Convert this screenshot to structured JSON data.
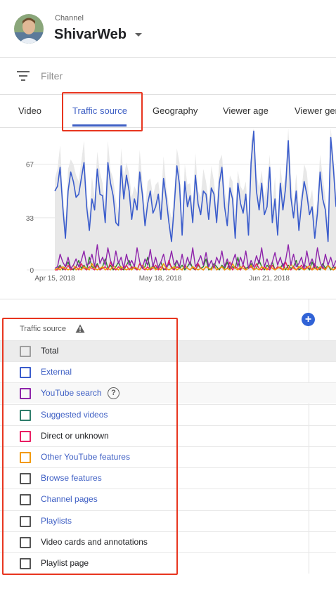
{
  "header": {
    "caption": "Channel",
    "channel_name": "ShivarWeb"
  },
  "filter": {
    "label": "Filter"
  },
  "tabs": [
    {
      "label": "Video",
      "active": false
    },
    {
      "label": "Traffic source",
      "active": true
    },
    {
      "label": "Geography",
      "active": false
    },
    {
      "label": "Viewer age",
      "active": false
    },
    {
      "label": "Viewer ger",
      "active": false
    }
  ],
  "chart_data": {
    "type": "line",
    "x_tick_labels": [
      "Apr 15, 2018",
      "May 18, 2018",
      "Jun 21, 2018"
    ],
    "y_tick_labels": [
      "0",
      "33",
      "67"
    ],
    "ylim": [
      0,
      90
    ],
    "grid": "horizontal",
    "x_days": 107,
    "series": [
      {
        "color": "#3a5ccc",
        "values": [
          50,
          53,
          65,
          40,
          20,
          50,
          62,
          56,
          46,
          48,
          58,
          68,
          40,
          25,
          45,
          38,
          64,
          48,
          47,
          30,
          68,
          55,
          47,
          30,
          28,
          66,
          45,
          60,
          50,
          32,
          45,
          38,
          62,
          48,
          28,
          42,
          50,
          36,
          40,
          48,
          32,
          58,
          45,
          30,
          18,
          40,
          66,
          54,
          22,
          56,
          40,
          47,
          30,
          60,
          42,
          35,
          50,
          48,
          32,
          52,
          48,
          30,
          55,
          65,
          40,
          28,
          52,
          45,
          20,
          55,
          42,
          36,
          48,
          22,
          68,
          88,
          50,
          38,
          55,
          35,
          40,
          65,
          30,
          45,
          22,
          55,
          38,
          52,
          82,
          46,
          33,
          50,
          25,
          42,
          56,
          48,
          35,
          40,
          20,
          36,
          62,
          45,
          38,
          18,
          84,
          65,
          40
        ]
      },
      {
        "color": "#8e24aa",
        "values": [
          1,
          2,
          10,
          5,
          2,
          8,
          1,
          3,
          7,
          2,
          6,
          12,
          3,
          4,
          10,
          2,
          16,
          4,
          8,
          3,
          14,
          6,
          2,
          12,
          4,
          8,
          1,
          10,
          3,
          6,
          2,
          14,
          5,
          1,
          7,
          3,
          13,
          2,
          8,
          1,
          5,
          10,
          2,
          4,
          12,
          3,
          6,
          2,
          10,
          1,
          8,
          3,
          14,
          2,
          5,
          9,
          3,
          11,
          2,
          6,
          1,
          8,
          4,
          12,
          2,
          7,
          1,
          5,
          10,
          2,
          8,
          3,
          12,
          1,
          6,
          2,
          9,
          4,
          14,
          2,
          7,
          1,
          5,
          11,
          3,
          8,
          2,
          6,
          16,
          3,
          10,
          2,
          4,
          8,
          1,
          12,
          3,
          7,
          2,
          14,
          5,
          1,
          10,
          3,
          8,
          2,
          6
        ]
      },
      {
        "color": "#2e7d32",
        "values": [
          0,
          1,
          3,
          0,
          2,
          5,
          1,
          0,
          2,
          6,
          1,
          3,
          0,
          8,
          2,
          1,
          4,
          0,
          2,
          7,
          1,
          3,
          0,
          2,
          5,
          1,
          0,
          3,
          6,
          1,
          2,
          0,
          4,
          1,
          2,
          8,
          0,
          3,
          1,
          2,
          5,
          0,
          1,
          4,
          2,
          0,
          6,
          1,
          3,
          0,
          2,
          5,
          1,
          0,
          3,
          1,
          2,
          7,
          0,
          1,
          4,
          2,
          0,
          3,
          1,
          5,
          0,
          2,
          1,
          8,
          0,
          3,
          1,
          2,
          4,
          0,
          1,
          6,
          2,
          0,
          3,
          1,
          5,
          0,
          2,
          1,
          4,
          0,
          3,
          1,
          2,
          6,
          0,
          1,
          3,
          2,
          0,
          5,
          1,
          2,
          0,
          4,
          1,
          3,
          0,
          2,
          1
        ]
      },
      {
        "color": "#e91e63",
        "values": [
          0,
          0,
          2,
          1,
          0,
          3,
          0,
          1,
          2,
          0,
          4,
          1,
          0,
          2,
          1,
          0,
          3,
          0,
          1,
          2,
          0,
          5,
          1,
          0,
          2,
          0,
          1,
          3,
          0,
          2,
          1,
          0,
          4,
          1,
          0,
          2,
          0,
          1,
          3,
          0,
          2,
          1,
          0,
          6,
          1,
          0,
          2,
          1,
          0,
          3,
          1,
          0,
          2,
          0,
          4,
          1,
          0,
          2,
          1,
          0,
          3,
          0,
          1,
          2,
          0,
          1,
          5,
          0,
          2,
          1,
          0,
          3,
          0,
          1,
          2,
          0,
          4,
          1,
          0,
          2,
          1,
          0,
          3,
          0,
          2,
          1,
          0,
          5,
          1,
          0,
          2,
          0,
          1,
          3,
          0,
          2,
          1,
          0,
          4,
          0,
          1,
          2,
          0,
          3,
          1,
          0,
          2
        ]
      },
      {
        "color": "#f29900",
        "values": [
          0,
          1,
          0,
          2,
          1,
          0,
          1,
          3,
          0,
          1,
          0,
          2,
          1,
          0,
          4,
          1,
          0,
          1,
          2,
          0,
          1,
          0,
          3,
          1,
          0,
          2,
          1,
          0,
          1,
          0,
          2,
          1,
          0,
          3,
          1,
          0,
          1,
          2,
          0,
          1,
          0,
          4,
          1,
          0,
          1,
          2,
          0,
          1,
          0,
          3,
          1,
          0,
          2,
          1,
          0,
          1,
          0,
          2,
          1,
          0,
          3,
          0,
          1,
          2,
          0,
          1,
          0,
          4,
          1,
          0,
          2,
          1,
          0,
          1,
          3,
          0,
          1,
          0,
          2,
          1,
          0,
          3,
          1,
          0,
          1,
          2,
          0,
          1,
          0,
          4,
          1,
          0,
          2,
          1,
          0,
          1,
          3,
          0,
          1,
          0,
          2,
          1,
          0,
          3,
          1,
          0,
          1
        ]
      }
    ],
    "total_band_color": "#e8e8e8"
  },
  "table": {
    "header_label": "Traffic source",
    "rows": [
      {
        "label": "Total",
        "checkbox_color": "#9e9e9e",
        "label_style": "plain",
        "bg": "shaded"
      },
      {
        "label": "External",
        "checkbox_color": "#3a5ccc",
        "label_style": "link",
        "bg": "none"
      },
      {
        "label": "YouTube search",
        "checkbox_color": "#8e24aa",
        "label_style": "link",
        "bg": "alt",
        "help": "?"
      },
      {
        "label": "Suggested videos",
        "checkbox_color": "#2e7d6b",
        "label_style": "link",
        "bg": "none"
      },
      {
        "label": "Direct or unknown",
        "checkbox_color": "#e91e63",
        "label_style": "plain",
        "bg": "none"
      },
      {
        "label": "Other YouTube features",
        "checkbox_color": "#f29900",
        "label_style": "link",
        "bg": "none"
      },
      {
        "label": "Browse features",
        "checkbox_color": "#555555",
        "label_style": "link",
        "bg": "none"
      },
      {
        "label": "Channel pages",
        "checkbox_color": "#555555",
        "label_style": "link",
        "bg": "none"
      },
      {
        "label": "Playlists",
        "checkbox_color": "#555555",
        "label_style": "link",
        "bg": "none"
      },
      {
        "label": "Video cards and annotations",
        "checkbox_color": "#555555",
        "label_style": "plain",
        "bg": "none"
      },
      {
        "label": "Playlist page",
        "checkbox_color": "#555555",
        "label_style": "plain",
        "bg": "none"
      }
    ]
  },
  "colors": {
    "accent": "#3e5fc4",
    "highlight": "#e8351f",
    "add_button": "#3062d6"
  }
}
